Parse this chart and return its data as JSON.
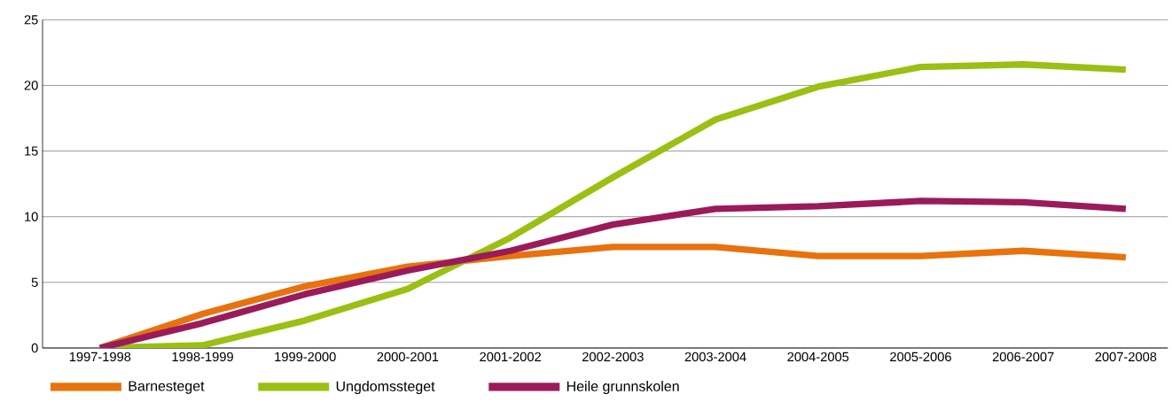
{
  "chart_data": {
    "type": "line",
    "categories": [
      "1997-1998",
      "1998-1999",
      "1999-2000",
      "2000-2001",
      "2001-2002",
      "2002-2003",
      "2003-2004",
      "2004-2005",
      "2005-2006",
      "2006-2007",
      "2007-2008"
    ],
    "series": [
      {
        "name": "Barnesteget",
        "color": "#e8720c",
        "values": [
          0,
          2.6,
          4.7,
          6.2,
          7.0,
          7.7,
          7.7,
          7.0,
          7.0,
          7.4,
          6.9
        ]
      },
      {
        "name": "Ungdomssteget",
        "color": "#9bbf12",
        "values": [
          0,
          0.2,
          2.1,
          4.5,
          8.4,
          13.0,
          17.4,
          19.9,
          21.4,
          21.6,
          21.2
        ]
      },
      {
        "name": "Heile grunnskolen",
        "color": "#9b1b5a",
        "values": [
          0,
          1.9,
          4.1,
          5.9,
          7.4,
          9.4,
          10.6,
          10.8,
          11.2,
          11.1,
          10.6
        ]
      }
    ],
    "ylim": [
      0,
      25
    ],
    "yticks": [
      0,
      5,
      10,
      15,
      20,
      25
    ],
    "grid": "y",
    "legend": "bottom",
    "marker": "none",
    "line_style": "solid"
  }
}
